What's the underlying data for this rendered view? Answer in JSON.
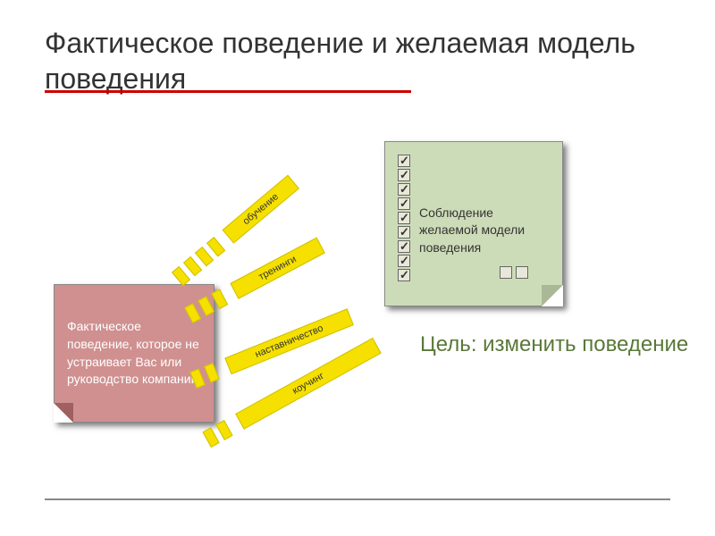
{
  "title": "Фактическое поведение и желаемая модель поведения",
  "left_note": {
    "text": "Фактическое поведение, которое не устраивает Вас или руководство компании",
    "bg_color": "#d09090",
    "text_color": "#ffffff"
  },
  "right_note": {
    "text": "Соблюдение желаемой модели поведения",
    "bg_color": "#cddcb8",
    "text_color": "#333333",
    "checked_count": 9,
    "unchecked_count": 2
  },
  "arrows": [
    {
      "label": "обучение",
      "dash_count": 4
    },
    {
      "label": "тренинги",
      "dash_count": 3
    },
    {
      "label": "наставничество",
      "dash_count": 2
    },
    {
      "label": "коучинг",
      "dash_count": 2
    }
  ],
  "goal": "Цель: изменить поведение",
  "colors": {
    "arrow_fill": "#f5e000",
    "arrow_border": "#d0c000",
    "red_line": "#cc0000",
    "goal_text": "#5a7838"
  }
}
